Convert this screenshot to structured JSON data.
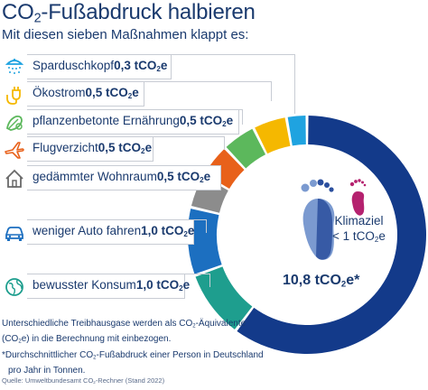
{
  "header": {
    "title_main": "CO",
    "title_sub": "2",
    "title_rest": "-Fußabdruck halbieren",
    "subtitle": "Mit diesen sieben Maßnahmen klappt es:"
  },
  "measures": [
    {
      "label": "Sparduschkopf",
      "value": "0,3 tCO",
      "sub": "2",
      "unit_e": "e",
      "icon": "shower-icon",
      "color": "#1fa3e0"
    },
    {
      "label": "Ökostrom",
      "value": "0,5 tCO",
      "sub": "2",
      "unit_e": "e",
      "icon": "plug-icon",
      "color": "#f5b800"
    },
    {
      "label": "pflanzenbetonte Ernährung",
      "value": "0,5 tCO",
      "sub": "2",
      "unit_e": "e",
      "icon": "vegetable-icon",
      "color": "#5cb85c"
    },
    {
      "label": "Flugverzicht",
      "value": "0,5 tCO",
      "sub": "2",
      "unit_e": "e",
      "icon": "airplane-icon",
      "color": "#e8611a"
    },
    {
      "label": "gedämmter Wohnraum",
      "value": "0,5 tCO",
      "sub": "2",
      "unit_e": "e",
      "icon": "house-icon",
      "color": "#8c8c8c"
    },
    {
      "label": "weniger Auto fahren",
      "value": "1,0 tCO",
      "sub": "2",
      "unit_e": "e",
      "icon": "car-icon",
      "color": "#1c6fc0"
    },
    {
      "label": "bewusster Konsum",
      "value": "1,0 tCO",
      "sub": "2",
      "unit_e": "e",
      "icon": "globe-icon",
      "color": "#1e9e8e"
    }
  ],
  "center": {
    "total_main": "10,8 tCO",
    "total_sub": "2",
    "total_rest": "e*",
    "target_line1": "Klimaziel",
    "target_line2": "< 1 tCO",
    "target_sub": "2",
    "target_rest": "e"
  },
  "notes": {
    "line1a": "Unterschiedliche Treibhausgase werden als CO",
    "line1sub": "2",
    "line1b": "-Äquivalente",
    "line2a": "(CO",
    "line2sub": "2",
    "line2b": "e) in die Berechnung mit einbezogen.",
    "line3a": "*Durchschnittlicher CO",
    "line3sub": "2",
    "line3b": "-Fußabdruck einer Person in Deutschland",
    "line4": "pro Jahr in Tonnen.",
    "source_a": "Quelle: Umweltbundesamt CO",
    "source_sub": "2",
    "source_b": "-Rechner (Stand 2022)"
  },
  "chart_data": {
    "type": "pie",
    "donut": true,
    "total": 10.8,
    "segments": [
      {
        "label": "Sparduschkopf",
        "value": 0.3,
        "color": "#1fa3e0"
      },
      {
        "label": "Ökostrom",
        "value": 0.5,
        "color": "#f5b800"
      },
      {
        "label": "pflanzenbetonte Ernährung",
        "value": 0.5,
        "color": "#5cb85c"
      },
      {
        "label": "Flugverzicht",
        "value": 0.5,
        "color": "#e8611a"
      },
      {
        "label": "gedämmter Wohnraum",
        "value": 0.5,
        "color": "#8c8c8c"
      },
      {
        "label": "weniger Auto fahren",
        "value": 1.0,
        "color": "#1c6fc0"
      },
      {
        "label": "bewusster Konsum",
        "value": 1.0,
        "color": "#1e9e8e"
      },
      {
        "label": "",
        "value": 6.5,
        "color": "#133a8a"
      }
    ]
  }
}
